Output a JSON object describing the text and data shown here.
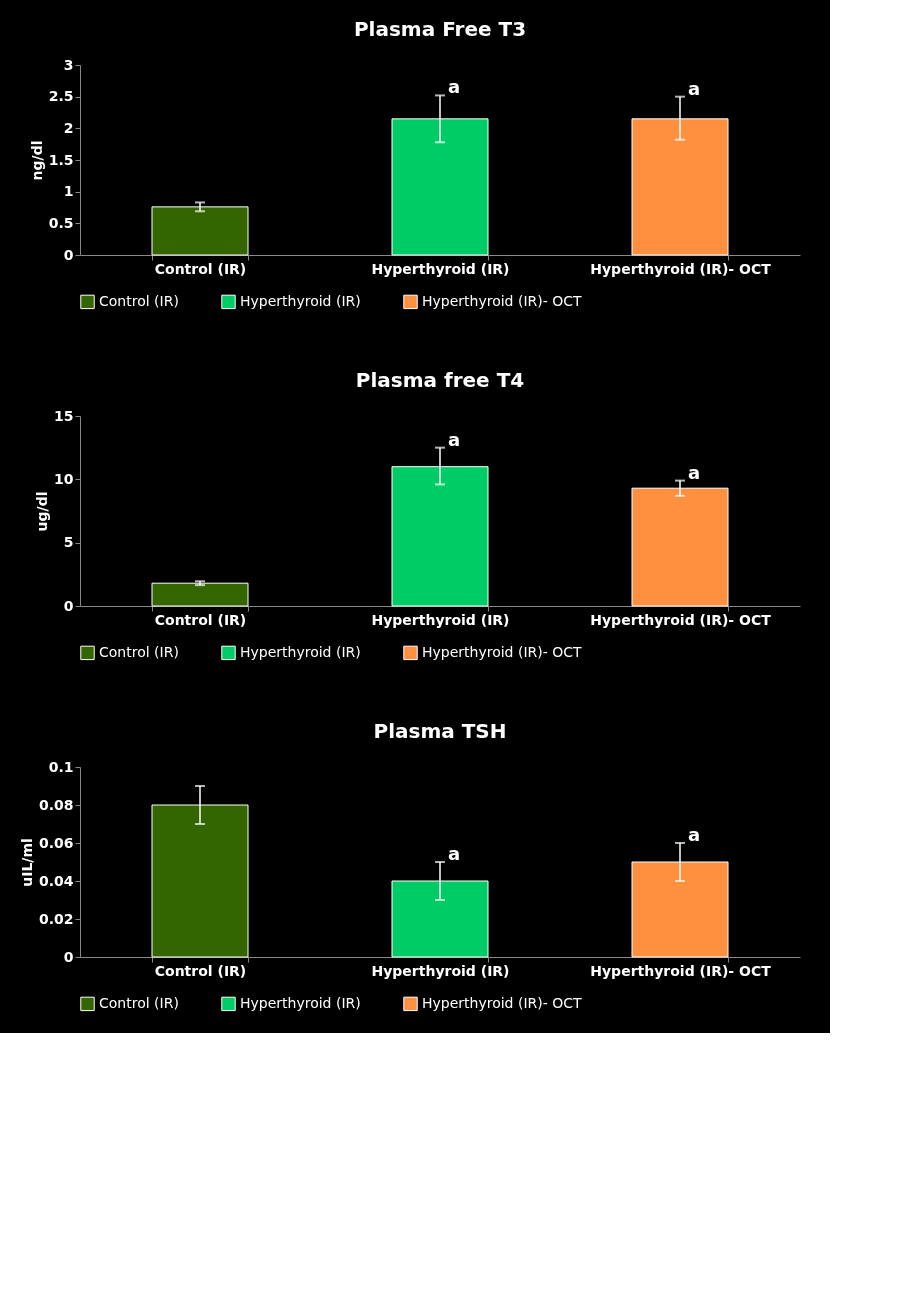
{
  "chart_data": [
    {
      "type": "bar",
      "title": "Plasma Free T3",
      "ylabel": "ng/dl",
      "categories": [
        "Control (IR)",
        "Hyperthyroid (IR)",
        "Hyperthyroid (IR)- OCT"
      ],
      "series": [
        {
          "name": "Control (IR)",
          "color": "#336600",
          "values": [
            0.76,
            null,
            null
          ],
          "errors": [
            [
              0.69,
              0.83
            ],
            null,
            null
          ]
        },
        {
          "name": "Hyperthyroid (IR)",
          "color": "#00cc66",
          "values": [
            null,
            2.15,
            null
          ],
          "errors": [
            null,
            [
              1.78,
              2.52
            ],
            null
          ]
        },
        {
          "name": "Hyperthyroid (IR)- OCT",
          "color": "#ff9040",
          "values": [
            null,
            null,
            2.15
          ],
          "errors": [
            null,
            null,
            [
              1.82,
              2.5
            ]
          ]
        }
      ],
      "ylim": [
        0,
        3
      ],
      "yticks": [
        0,
        0.5,
        1,
        1.5,
        2,
        2.5,
        3
      ],
      "grid": false,
      "legend": "bottom",
      "annotations": [
        {
          "text": "a",
          "x": "Hyperthyroid (IR)",
          "y": 2.52
        },
        {
          "text": "a",
          "x": "Hyperthyroid (IR)- OCT",
          "y": 2.5
        }
      ]
    },
    {
      "type": "bar",
      "title": "Plasma free T4",
      "ylabel": "ug/dl",
      "categories": [
        "Control (IR)",
        "Hyperthyroid (IR)",
        "Hyperthyroid (IR)- OCT"
      ],
      "series": [
        {
          "name": "Control (IR)",
          "color": "#336600",
          "values": [
            1.8,
            null,
            null
          ],
          "errors": [
            [
              1.65,
              1.95
            ],
            null,
            null
          ]
        },
        {
          "name": "Hyperthyroid (IR)",
          "color": "#00cc66",
          "values": [
            null,
            11,
            null
          ],
          "errors": [
            null,
            [
              9.6,
              12.5
            ],
            null
          ]
        },
        {
          "name": "Hyperthyroid (IR)- OCT",
          "color": "#ff9040",
          "values": [
            null,
            null,
            9.3
          ],
          "errors": [
            null,
            null,
            [
              8.7,
              9.9
            ]
          ]
        }
      ],
      "ylim": [
        0,
        15
      ],
      "yticks": [
        0,
        5,
        10,
        15
      ],
      "grid": false,
      "legend": "bottom",
      "annotations": [
        {
          "text": "a",
          "x": "Hyperthyroid (IR)",
          "y": 12.5
        },
        {
          "text": "a",
          "x": "Hyperthyroid (IR)- OCT",
          "y": 9.9
        }
      ]
    },
    {
      "type": "bar",
      "title": "Plasma TSH",
      "ylabel": "uIL/ml",
      "categories": [
        "Control (IR)",
        "Hyperthyroid (IR)",
        "Hyperthyroid (IR)- OCT"
      ],
      "series": [
        {
          "name": "Control (IR)",
          "color": "#336600",
          "values": [
            0.08,
            null,
            null
          ],
          "errors": [
            0.01,
            null,
            null
          ]
        },
        {
          "name": "Hyperthyroid (IR)",
          "color": "#00cc66",
          "values": [
            null,
            0.04,
            null
          ],
          "errors": [
            null,
            0.01,
            null
          ]
        },
        {
          "name": "Hyperthyroid (IR)- OCT",
          "color": "#ff9040",
          "values": [
            null,
            null,
            0.05
          ],
          "errors": [
            null,
            null,
            0.01
          ]
        }
      ],
      "ylim": [
        0,
        0.1
      ],
      "yticks": [
        0,
        0.02,
        0.04,
        0.06,
        0.08,
        0.1
      ],
      "grid": false,
      "legend": "bottom",
      "annotations": [
        {
          "text": "a",
          "x": "Hyperthyroid (IR)",
          "y": 0.05
        },
        {
          "text": "a",
          "x": "Hyperthyroid (IR)- OCT",
          "y": 0.06
        }
      ]
    }
  ]
}
